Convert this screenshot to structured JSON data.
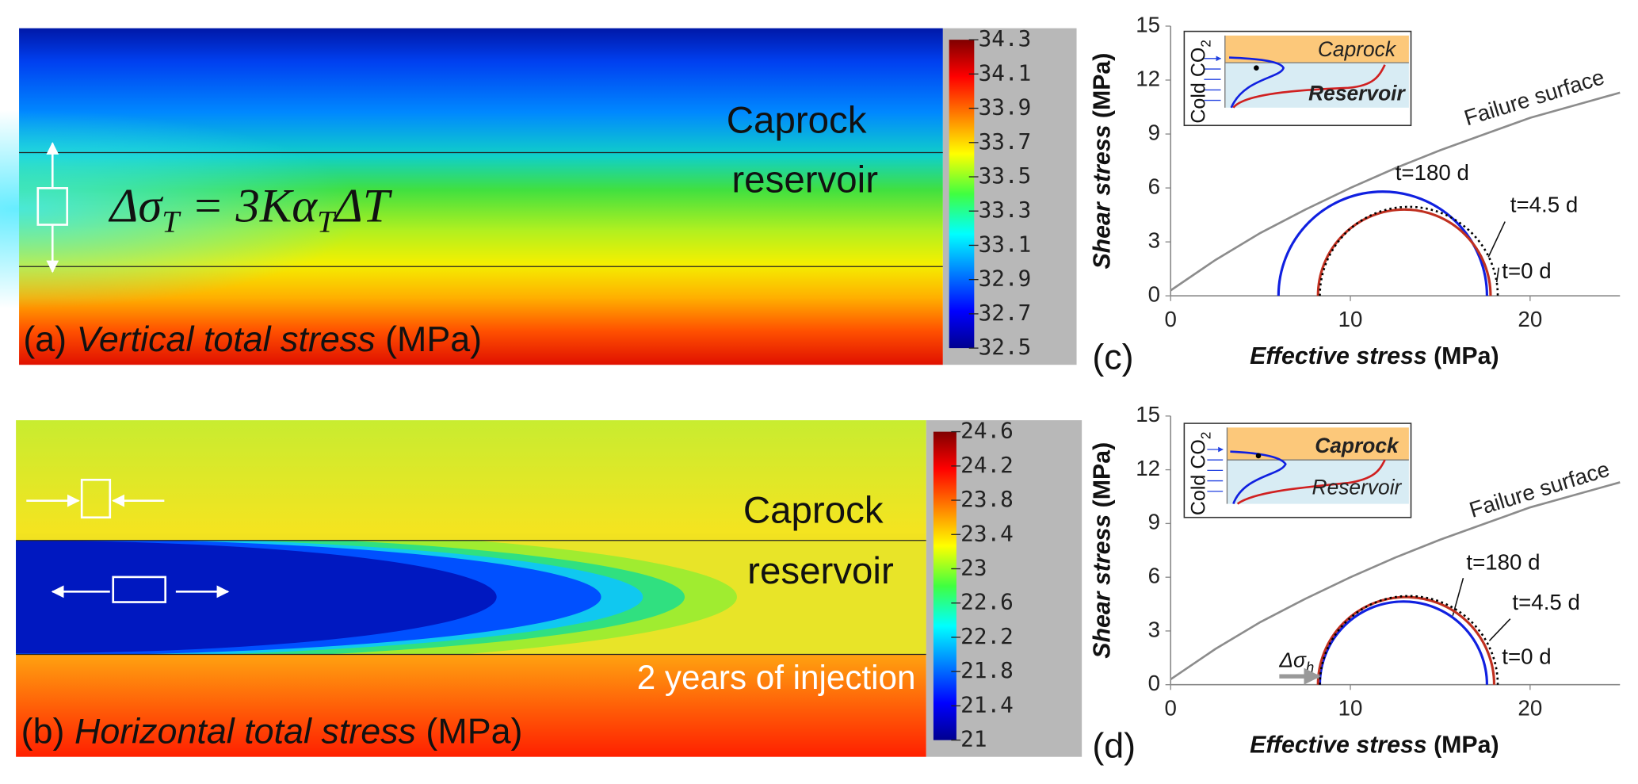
{
  "maps": [
    {
      "label": "(a)",
      "title": "Vertical total stress",
      "unit": "(MPa)",
      "top_label": "Caprock",
      "bottom_label": "reservoir",
      "equation": [
        "Δσ",
        "T",
        " = 3Kα",
        "T",
        "ΔT"
      ],
      "colorbar": {
        "clim": [
          32.5,
          34.3
        ],
        "ticks": [
          34.3,
          34.1,
          33.9,
          33.7,
          33.5,
          33.3,
          33.1,
          32.9,
          32.7,
          32.5
        ]
      }
    },
    {
      "label": "(b)",
      "title": "Horizontal total stress",
      "unit": "(MPa)",
      "top_label": "Caprock",
      "bottom_label": "reservoir",
      "note": "2 years of injection",
      "colorbar": {
        "clim": [
          21,
          24.6
        ],
        "ticks": [
          24.6,
          24.2,
          23.8,
          23.4,
          23,
          22.6,
          22.2,
          21.8,
          21.4,
          21
        ]
      }
    }
  ],
  "chart_data": [
    {
      "type": "mohr",
      "label": "(c)",
      "xlabel": "Effective stress",
      "xunit": "(MPa)",
      "ylabel": "Shear stress",
      "yunit": "(MPa)",
      "xlim": [
        0,
        25
      ],
      "ylim": [
        0,
        15
      ],
      "xticks": [
        0,
        10,
        20
      ],
      "yticks": [
        0,
        3,
        6,
        9,
        12,
        15
      ],
      "failure_surface": {
        "name": "Failure surface",
        "color": "#8c8c8c",
        "x": [
          0,
          2.5,
          5,
          7.5,
          10,
          12.5,
          15,
          17.5,
          20,
          22.5,
          25
        ],
        "y": [
          0.3,
          2.0,
          3.5,
          4.8,
          6.0,
          7.1,
          8.1,
          9.0,
          9.9,
          10.6,
          11.3
        ]
      },
      "circles": [
        {
          "name": "t=180 d",
          "color": "#1020e0",
          "center": 11.8,
          "radius": 5.8
        },
        {
          "name": "t=4.5 d",
          "color": "#c03020",
          "center": 13.0,
          "radius": 4.8
        },
        {
          "name": "t=0 d",
          "color": "#000000",
          "center": 13.25,
          "radius": 4.95
        }
      ],
      "inset": {
        "y_label": [
          "Cold CO",
          "2"
        ],
        "caprock": "Caprock",
        "reservoir": "Reservoir"
      }
    },
    {
      "type": "mohr",
      "label": "(d)",
      "xlabel": "Effective stress",
      "xunit": "(MPa)",
      "ylabel": "Shear stress",
      "yunit": "(MPa)",
      "xlim": [
        0,
        25
      ],
      "ylim": [
        0,
        15
      ],
      "xticks": [
        0,
        10,
        20
      ],
      "yticks": [
        0,
        3,
        6,
        9,
        12,
        15
      ],
      "failure_surface": {
        "name": "Failure surface",
        "color": "#8c8c8c",
        "x": [
          0,
          2.5,
          5,
          7.5,
          10,
          12.5,
          15,
          17.5,
          20,
          22.5,
          25
        ],
        "y": [
          0.3,
          2.0,
          3.5,
          4.8,
          6.0,
          7.1,
          8.1,
          9.0,
          9.9,
          10.6,
          11.3
        ]
      },
      "circles": [
        {
          "name": "t=180 d",
          "color": "#1020e0",
          "center": 12.95,
          "radius": 4.65
        },
        {
          "name": "t=4.5 d",
          "color": "#c03020",
          "center": 13.1,
          "radius": 4.9
        },
        {
          "name": "t=0 d",
          "color": "#000000",
          "center": 13.25,
          "radius": 4.95
        }
      ],
      "annotation": [
        "Δσ",
        "h"
      ],
      "inset": {
        "y_label": [
          "Cold CO",
          "2"
        ],
        "caprock": "Caprock",
        "reservoir": "Reservoir"
      }
    }
  ]
}
